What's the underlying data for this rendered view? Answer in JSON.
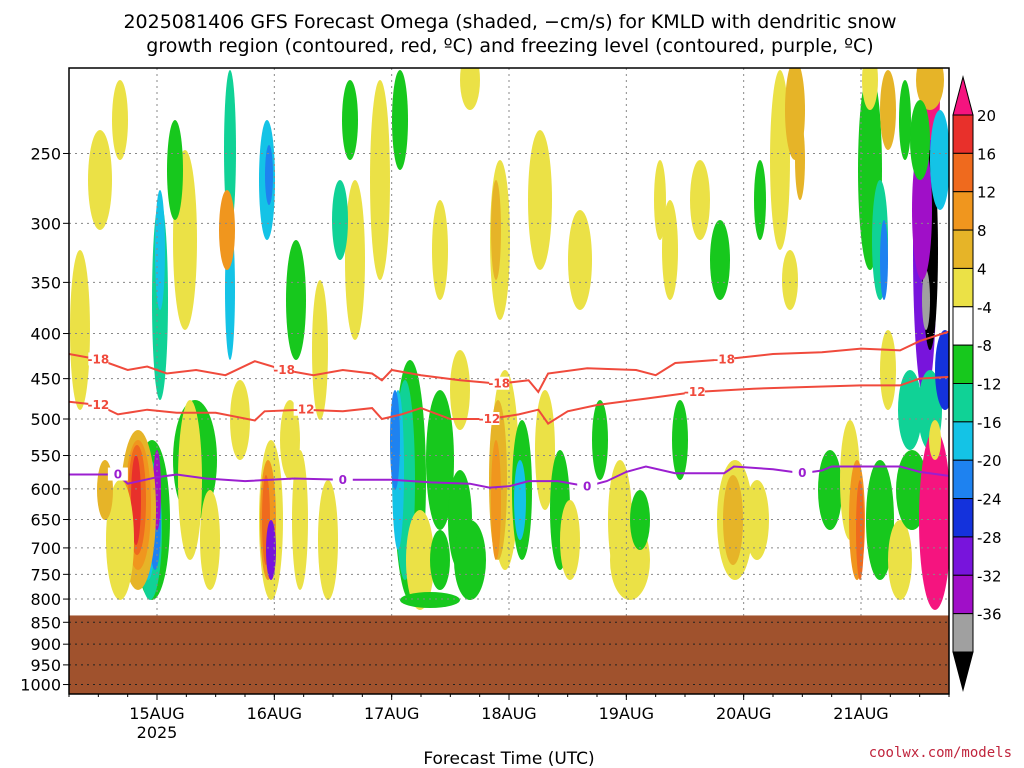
{
  "title_line1": "2025081406 GFS Forecast Omega (shaded, −cm/s) for KMLD with dendritic snow",
  "title_line2": "growth region (contoured, red, ºC) and freezing level (contoured, purple, ºC)",
  "credit": "coolwx.com/models",
  "colors": {
    "ground": "#a0522d",
    "dendritic": "#f04a3c",
    "freezing": "#9b1fd0",
    "grid": "#888888"
  },
  "chart_data": {
    "type": "heatmap",
    "title": "2025081406 GFS Forecast Omega (shaded, −cm/s) for KMLD with dendritic snow growth region (contoured, red, ºC) and freezing level (contoured, purple, ºC)",
    "xlabel": "Forecast Time (UTC)",
    "ylabel": "",
    "y_ticks": [
      250,
      300,
      350,
      400,
      450,
      500,
      550,
      600,
      650,
      700,
      750,
      800,
      850,
      900,
      950,
      1000
    ],
    "y_scale": "log",
    "ylim": [
      1025,
      200
    ],
    "x_ticks": [
      {
        "label": "15AUG",
        "sub": "2025",
        "hour": 18
      },
      {
        "label": "16AUG",
        "sub": "",
        "hour": 42
      },
      {
        "label": "17AUG",
        "sub": "",
        "hour": 66
      },
      {
        "label": "18AUG",
        "sub": "",
        "hour": 90
      },
      {
        "label": "19AUG",
        "sub": "",
        "hour": 114
      },
      {
        "label": "20AUG",
        "sub": "",
        "hour": 138
      },
      {
        "label": "21AUG",
        "sub": "",
        "hour": 162
      }
    ],
    "xlim": [
      0,
      180
    ],
    "grid": true,
    "colorbar": {
      "placement": "right",
      "labels": [
        20,
        16,
        12,
        8,
        4,
        -4,
        -8,
        -12,
        -16,
        -20,
        -24,
        -28,
        -32,
        -36
      ],
      "colors": [
        "#f5147f",
        "#e8302b",
        "#ef6a1e",
        "#f0961e",
        "#e6b428",
        "#ebe146",
        "#ffffff",
        "#17c81d",
        "#10d296",
        "#14c3e6",
        "#1e82f0",
        "#1432dc",
        "#7814dc",
        "#a00fc8",
        "#a0a0a0",
        "#000000"
      ]
    },
    "ground_pressure": 835,
    "contours": [
      {
        "label": "-18",
        "color": "#f04a3c",
        "points": [
          [
            0,
            422
          ],
          [
            6,
            428
          ],
          [
            12,
            440
          ],
          [
            16,
            436
          ],
          [
            20,
            444
          ],
          [
            26,
            440
          ],
          [
            32,
            446
          ],
          [
            38,
            430
          ],
          [
            44,
            440
          ],
          [
            50,
            446
          ],
          [
            56,
            440
          ],
          [
            62,
            444
          ],
          [
            64,
            452
          ],
          [
            66,
            440
          ],
          [
            72,
            446
          ],
          [
            80,
            452
          ],
          [
            88,
            456
          ],
          [
            94,
            452
          ],
          [
            96,
            466
          ],
          [
            98,
            444
          ],
          [
            106,
            438
          ],
          [
            116,
            440
          ],
          [
            120,
            446
          ],
          [
            124,
            432
          ],
          [
            134,
            428
          ],
          [
            144,
            422
          ],
          [
            154,
            420
          ],
          [
            162,
            416
          ],
          [
            170,
            418
          ],
          [
            174,
            408
          ],
          [
            180,
            398
          ]
        ]
      },
      {
        "label": "-12",
        "color": "#f04a3c",
        "points": [
          [
            0,
            478
          ],
          [
            6,
            482
          ],
          [
            10,
            494
          ],
          [
            16,
            488
          ],
          [
            22,
            492
          ],
          [
            30,
            492
          ],
          [
            38,
            502
          ],
          [
            40,
            490
          ],
          [
            48,
            488
          ],
          [
            56,
            490
          ],
          [
            62,
            486
          ],
          [
            64,
            500
          ],
          [
            68,
            494
          ],
          [
            72,
            486
          ],
          [
            78,
            500
          ],
          [
            86,
            500
          ],
          [
            92,
            494
          ],
          [
            96,
            488
          ],
          [
            98,
            506
          ],
          [
            102,
            490
          ],
          [
            108,
            482
          ],
          [
            118,
            474
          ],
          [
            128,
            466
          ],
          [
            140,
            462
          ],
          [
            150,
            460
          ],
          [
            162,
            458
          ],
          [
            170,
            458
          ],
          [
            174,
            450
          ],
          [
            180,
            448
          ]
        ]
      },
      {
        "label": "0",
        "color": "#9b1fd0",
        "points": [
          [
            0,
            578
          ],
          [
            10,
            578
          ],
          [
            12,
            592
          ],
          [
            18,
            582
          ],
          [
            22,
            578
          ],
          [
            28,
            584
          ],
          [
            36,
            588
          ],
          [
            46,
            584
          ],
          [
            56,
            586
          ],
          [
            66,
            586
          ],
          [
            74,
            590
          ],
          [
            82,
            592
          ],
          [
            86,
            598
          ],
          [
            90,
            596
          ],
          [
            94,
            588
          ],
          [
            100,
            588
          ],
          [
            106,
            596
          ],
          [
            110,
            588
          ],
          [
            114,
            574
          ],
          [
            118,
            566
          ],
          [
            124,
            576
          ],
          [
            134,
            576
          ],
          [
            136,
            566
          ],
          [
            144,
            570
          ],
          [
            150,
            576
          ],
          [
            154,
            572
          ],
          [
            156,
            566
          ],
          [
            164,
            566
          ],
          [
            170,
            566
          ],
          [
            174,
            574
          ],
          [
            180,
            580
          ]
        ]
      }
    ]
  }
}
